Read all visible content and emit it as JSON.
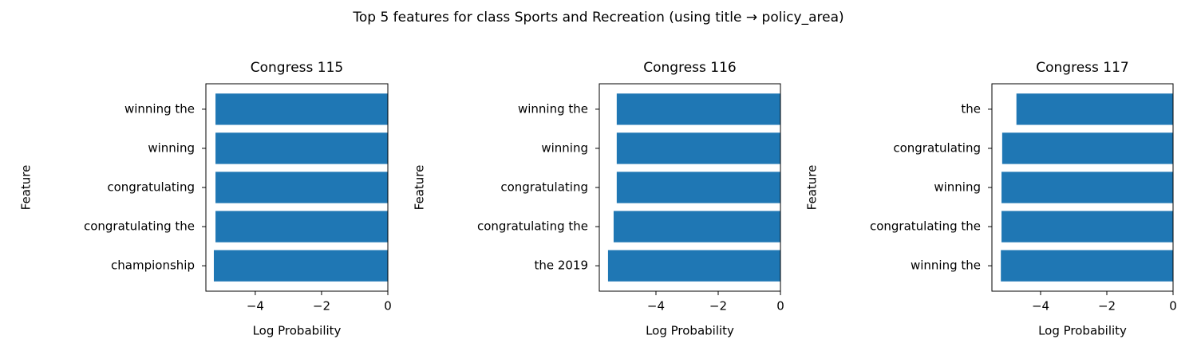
{
  "title": "Top 5 features for class Sports and Recreation (using title → policy_area)",
  "chart_data": [
    {
      "type": "barh",
      "title": "Congress 115",
      "xlabel": "Log Probability",
      "ylabel": "Feature",
      "categories": [
        "winning the",
        "winning",
        "congratulating",
        "congratulating the",
        "championship"
      ],
      "values": [
        -5.2,
        -5.2,
        -5.2,
        -5.2,
        -5.25
      ],
      "color": "#1f77b4",
      "xlim": [
        -5.49,
        0
      ],
      "xticks": [
        {
          "value": -4,
          "label": "−4"
        },
        {
          "value": -2,
          "label": "−2"
        },
        0
      ]
    },
    {
      "type": "barh",
      "title": "Congress 116",
      "xlabel": "Log Probability",
      "ylabel": "Feature",
      "categories": [
        "winning the",
        "winning",
        "congratulating",
        "congratulating the",
        "the 2019"
      ],
      "values": [
        -5.26,
        -5.26,
        -5.26,
        -5.36,
        -5.54
      ],
      "color": "#1f77b4",
      "xlim": [
        -5.82,
        0
      ],
      "xticks": [
        {
          "value": -4,
          "label": "−4"
        },
        {
          "value": -2,
          "label": "−2"
        },
        0
      ]
    },
    {
      "type": "barh",
      "title": "Congress 117",
      "xlabel": "Log Probability",
      "ylabel": "Feature",
      "categories": [
        "the",
        "congratulating",
        "winning",
        "congratulating the",
        "winning the"
      ],
      "values": [
        -4.73,
        -5.16,
        -5.18,
        -5.18,
        -5.2
      ],
      "color": "#1f77b4",
      "xlim": [
        -5.47,
        0
      ],
      "xticks": [
        {
          "value": -4,
          "label": "−4"
        },
        {
          "value": -2,
          "label": "−2"
        },
        0
      ]
    }
  ]
}
